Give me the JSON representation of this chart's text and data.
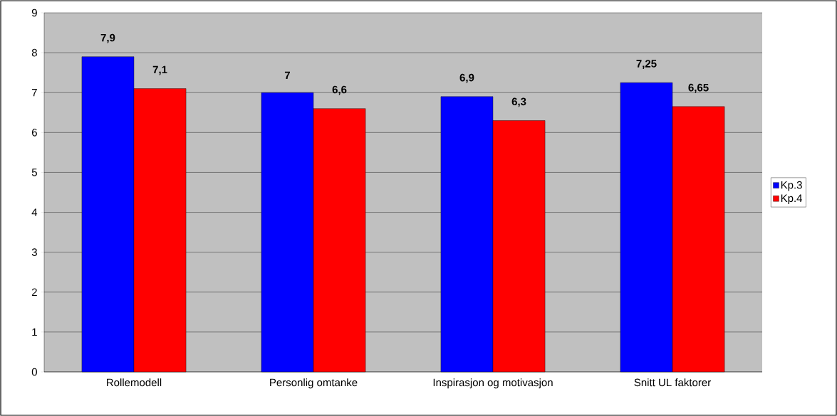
{
  "chart_data": {
    "type": "bar",
    "categories": [
      "Rollemodell",
      "Personlig omtanke",
      "Inspirasjon og motivasjon",
      "Snitt UL faktorer"
    ],
    "series": [
      {
        "name": "Kp.3",
        "color": "#0000ff",
        "values": [
          7.9,
          7,
          6.9,
          7.25
        ],
        "value_labels": [
          "7,9",
          "7",
          "6,9",
          "7,25"
        ]
      },
      {
        "name": "Kp.4",
        "color": "#ff0000",
        "values": [
          7.1,
          6.6,
          6.3,
          6.65
        ],
        "value_labels": [
          "7,1",
          "6,6",
          "6,3",
          "6,65"
        ]
      }
    ],
    "ylim": [
      0,
      9
    ],
    "yticks": [
      0,
      1,
      2,
      3,
      4,
      5,
      6,
      7,
      8,
      9
    ],
    "grid": "y",
    "legend": "right"
  }
}
